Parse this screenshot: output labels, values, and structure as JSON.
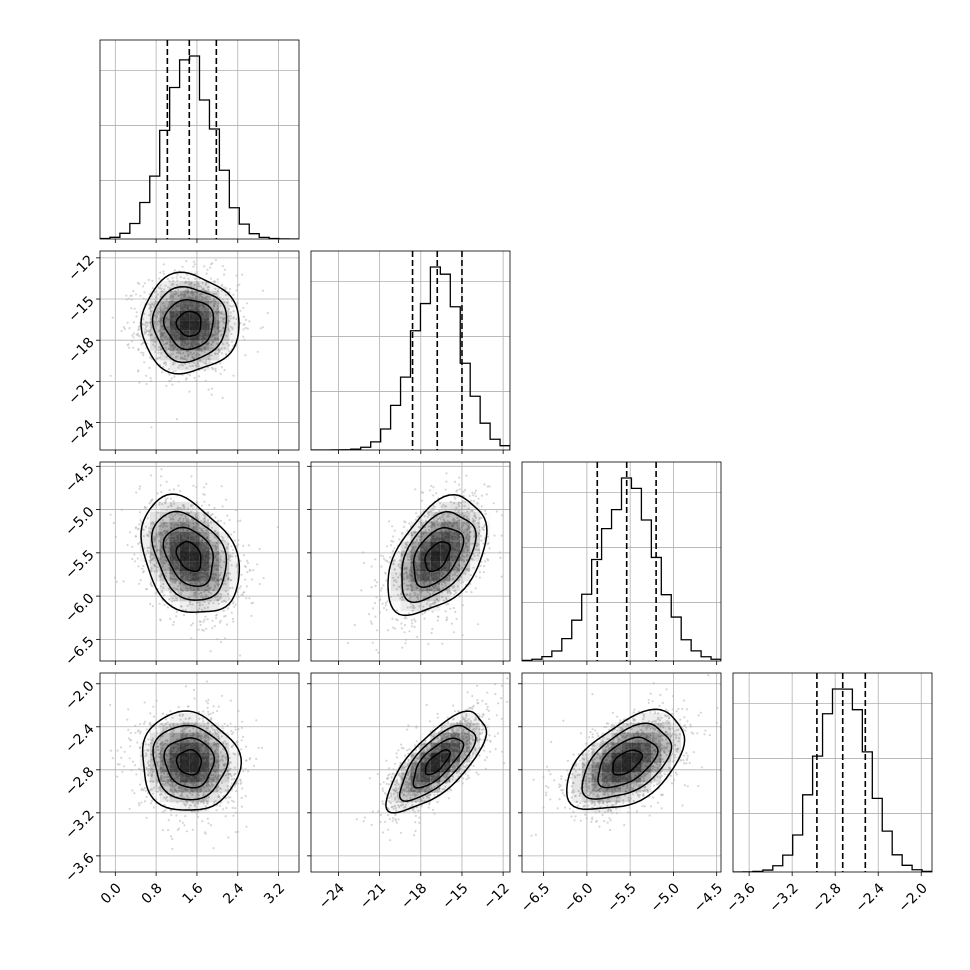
{
  "chart_data": {
    "type": "corner",
    "title": "",
    "parameters": [
      {
        "index": 0,
        "median": 1.45,
        "q16": 1.02,
        "q84": 1.98,
        "sd": 0.48,
        "range": [
          -0.3,
          3.6
        ],
        "ticks": [
          0.0,
          0.8,
          1.6,
          2.4,
          3.2
        ],
        "tick_labels": [
          "0.0",
          "0.8",
          "1.6",
          "2.4",
          "3.2"
        ]
      },
      {
        "index": 1,
        "median": -16.8,
        "q16": -18.6,
        "q84": -15.0,
        "sd": 1.8,
        "range": [
          -26,
          -11.5
        ],
        "ticks": [
          -24,
          -21,
          -18,
          -15,
          -12
        ],
        "tick_labels": [
          "−24",
          "−21",
          "−18",
          "−15",
          "−12"
        ]
      },
      {
        "index": 2,
        "median": -5.54,
        "q16": -5.88,
        "q84": -5.2,
        "sd": 0.34,
        "range": [
          -6.75,
          -4.45
        ],
        "ticks": [
          -6.5,
          -6.0,
          -5.5,
          -5.0,
          -4.5
        ],
        "tick_labels": [
          "−6.5",
          "−6.0",
          "−5.5",
          "−5.0",
          "−4.5"
        ]
      },
      {
        "index": 3,
        "median": -2.73,
        "q16": -2.97,
        "q84": -2.52,
        "sd": 0.23,
        "range": [
          -3.75,
          -1.9
        ],
        "ticks": [
          -3.6,
          -3.2,
          -2.8,
          -2.4,
          -2.0
        ],
        "tick_labels": [
          "−3.6",
          "−3.2",
          "−2.8",
          "−2.4",
          "−2.0"
        ]
      }
    ],
    "correlations": [
      {
        "pair": [
          0,
          1
        ],
        "r": 0.0
      },
      {
        "pair": [
          0,
          2
        ],
        "r": -0.3
      },
      {
        "pair": [
          0,
          3
        ],
        "r": -0.05
      },
      {
        "pair": [
          1,
          2
        ],
        "r": 0.45
      },
      {
        "pair": [
          1,
          3
        ],
        "r": 0.72
      },
      {
        "pair": [
          2,
          3
        ],
        "r": 0.5
      }
    ],
    "quantiles": [
      0.16,
      0.5,
      0.84
    ],
    "contour_levels_sigma": [
      0.5,
      1.0,
      1.5,
      2.0
    ],
    "grid": true,
    "colors": {
      "points": "#b4b4b4",
      "lines": "#000000",
      "density": "#000000"
    }
  }
}
